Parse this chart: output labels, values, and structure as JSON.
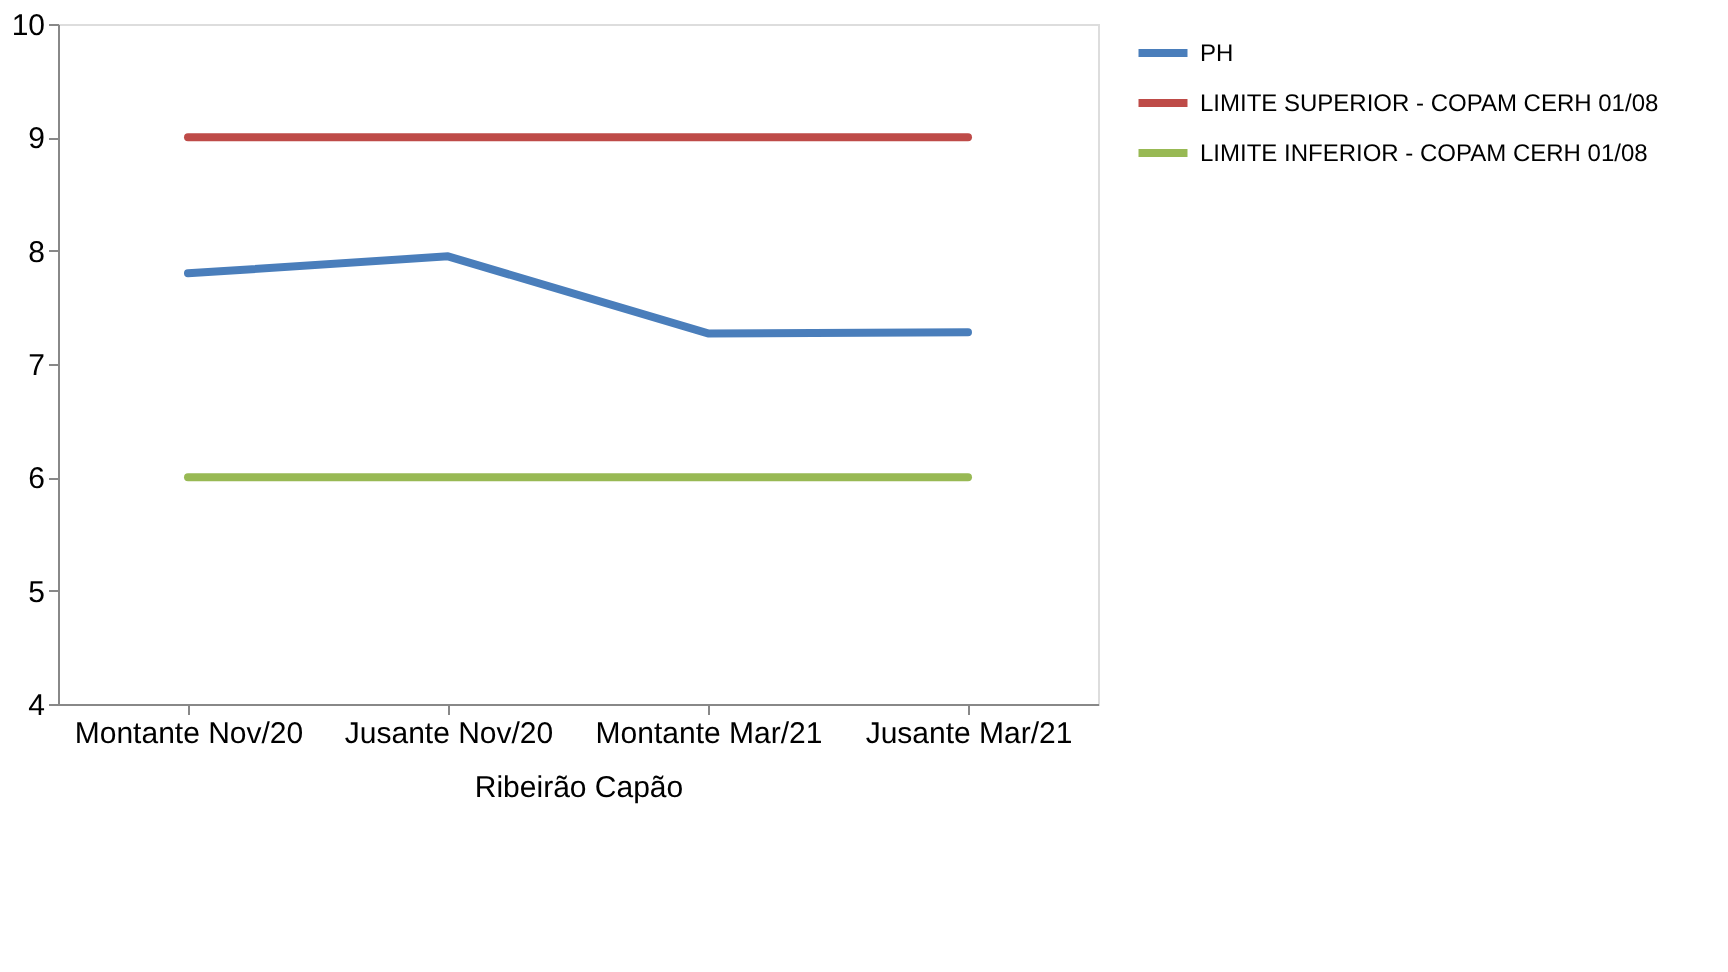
{
  "chart_data": {
    "type": "line",
    "categories": [
      "Montante Nov/20",
      "Jusante Nov/20",
      "Montante Mar/21",
      "Jusante Mar/21"
    ],
    "xlabel": "Ribeirão Capão",
    "series": [
      {
        "name": "PH",
        "color": "#4a7ebb",
        "values": [
          7.8,
          7.95,
          7.27,
          7.28
        ]
      },
      {
        "name": "LIMITE SUPERIOR - COPAM CERH 01/08",
        "color": "#be4b48",
        "values": [
          9,
          9,
          9,
          9
        ]
      },
      {
        "name": "LIMITE INFERIOR - COPAM CERH 01/08",
        "color": "#98b954",
        "values": [
          6,
          6,
          6,
          6
        ]
      }
    ],
    "ylim": [
      4,
      10
    ],
    "yticks": [
      4,
      5,
      6,
      7,
      8,
      9,
      10
    ],
    "grid": false,
    "legend": "right",
    "marker": "none",
    "line_style": "solid"
  }
}
